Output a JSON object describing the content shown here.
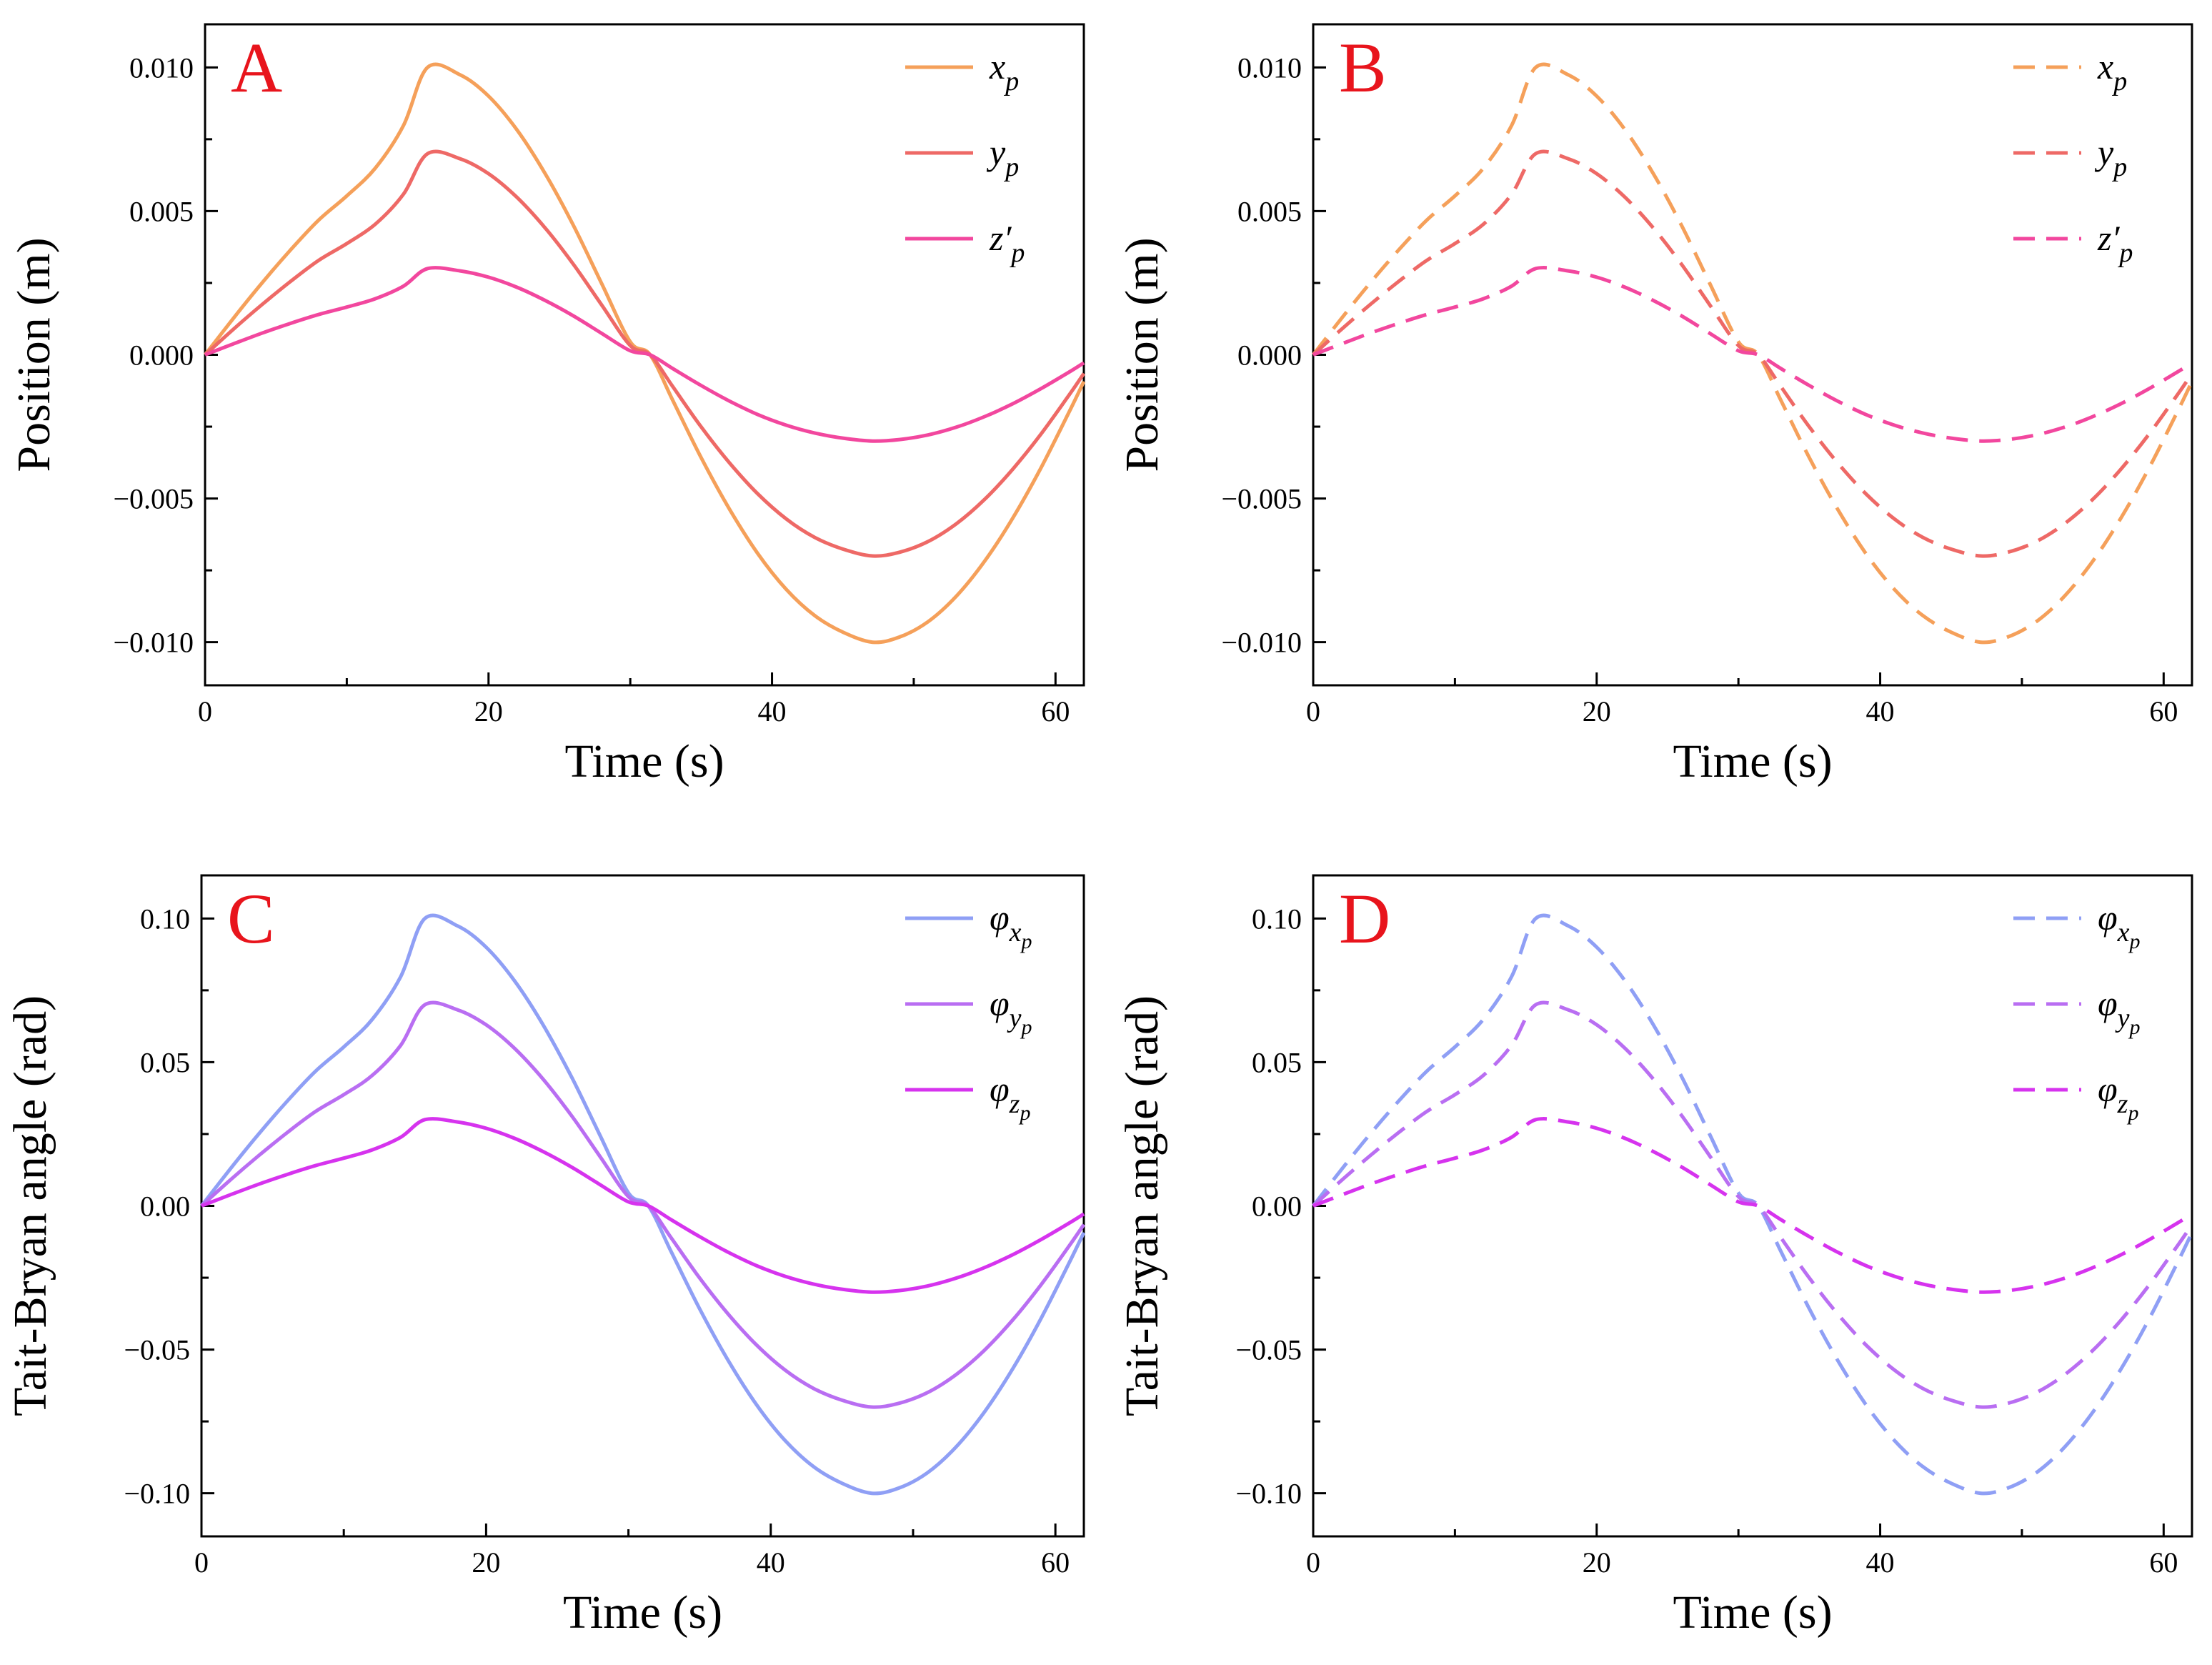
{
  "chart_data": [
    {
      "panel": "A",
      "type": "line",
      "title": "",
      "xlabel": "Time (s)",
      "ylabel": "Position (m)",
      "xlim": [
        0,
        62
      ],
      "ylim": [
        -0.0115,
        0.0115
      ],
      "xticks": [
        0,
        20,
        40,
        60
      ],
      "xtick_labels": [
        "0",
        "20",
        "40",
        "60"
      ],
      "xminor": [
        10,
        30,
        50
      ],
      "yticks": [
        0.01,
        0.005,
        0.0,
        -0.005,
        -0.01
      ],
      "ytick_labels": [
        "0.010",
        "0.005",
        "0.000",
        "−0.005",
        "−0.010"
      ],
      "grid": false,
      "legend_position": "top-right",
      "linestyle": "solid",
      "x": [
        0,
        2,
        4,
        6,
        8,
        10,
        12,
        14,
        15.7,
        18,
        20,
        22,
        24,
        26,
        28,
        30,
        31.4,
        33,
        35,
        37,
        39,
        41,
        43,
        45,
        47.1,
        49,
        51,
        53,
        55,
        57,
        59,
        61,
        62
      ],
      "series": [
        {
          "name": "x_p",
          "color": "#f5a05a",
          "legend_main": "x",
          "legend_sub": "p",
          "values": [
            0,
            0.00127,
            0.00249,
            0.00363,
            0.00468,
            0.00553,
            0.00649,
            0.00798,
            0.01,
            0.00974,
            0.009,
            0.00783,
            0.0063,
            0.00449,
            0.00246,
            0.00045,
            0,
            -0.00159,
            -0.00358,
            -0.00537,
            -0.00692,
            -0.00816,
            -0.00907,
            -0.00965,
            -0.01,
            -0.00982,
            -0.00929,
            -0.0084,
            -0.00718,
            -0.00567,
            -0.00391,
            -0.00195,
            -0.00093
          ]
        },
        {
          "name": "y_p",
          "color": "#ee6966",
          "legend_main": "y",
          "legend_sub": "p",
          "values": [
            0,
            0.00089,
            0.00174,
            0.00254,
            0.00328,
            0.00387,
            0.00454,
            0.00559,
            0.007,
            0.00682,
            0.0063,
            0.00548,
            0.00441,
            0.00314,
            0.00172,
            0.00032,
            0,
            -0.00111,
            -0.00251,
            -0.00376,
            -0.00484,
            -0.00571,
            -0.00635,
            -0.00676,
            -0.007,
            -0.00687,
            -0.0065,
            -0.00588,
            -0.00503,
            -0.00397,
            -0.00274,
            -0.00137,
            -0.00065
          ]
        },
        {
          "name": "z'_p",
          "color": "#f2479e",
          "legend_main": "z′",
          "legend_sub": "p",
          "values": [
            0,
            0.00038,
            0.00075,
            0.00109,
            0.0014,
            0.00166,
            0.00195,
            0.00239,
            0.003,
            0.00292,
            0.0027,
            0.00235,
            0.00189,
            0.00135,
            0.00074,
            0.00014,
            0,
            -0.00048,
            -0.00107,
            -0.00161,
            -0.00208,
            -0.00245,
            -0.00272,
            -0.0029,
            -0.003,
            -0.00295,
            -0.00279,
            -0.00252,
            -0.00215,
            -0.0017,
            -0.00117,
            -0.00059,
            -0.00028
          ]
        }
      ]
    },
    {
      "panel": "B",
      "type": "line",
      "title": "",
      "xlabel": "Time (s)",
      "ylabel": "Position (m)",
      "xlim": [
        0,
        62
      ],
      "ylim": [
        -0.0115,
        0.0115
      ],
      "xticks": [
        0,
        20,
        40,
        60
      ],
      "xtick_labels": [
        "0",
        "20",
        "40",
        "60"
      ],
      "xminor": [
        10,
        30,
        50
      ],
      "yticks": [
        0.01,
        0.005,
        0.0,
        -0.005,
        -0.01
      ],
      "ytick_labels": [
        "0.010",
        "0.005",
        "0.000",
        "−0.005",
        "−0.010"
      ],
      "grid": false,
      "legend_position": "top-right",
      "linestyle": "dashed",
      "x": [
        0,
        2,
        4,
        6,
        8,
        10,
        12,
        14,
        15.7,
        18,
        20,
        22,
        24,
        26,
        28,
        30,
        31.4,
        33,
        35,
        37,
        39,
        41,
        43,
        45,
        47.1,
        49,
        51,
        53,
        55,
        57,
        59,
        61,
        62
      ],
      "series": [
        {
          "name": "x_p",
          "color": "#f5a05a",
          "legend_main": "x",
          "legend_sub": "p",
          "values": [
            0,
            0.00127,
            0.00249,
            0.00363,
            0.00468,
            0.00553,
            0.00649,
            0.00798,
            0.01,
            0.00974,
            0.009,
            0.00783,
            0.0063,
            0.00449,
            0.00246,
            0.00045,
            0,
            -0.00159,
            -0.00358,
            -0.00537,
            -0.00692,
            -0.00816,
            -0.00907,
            -0.00965,
            -0.01,
            -0.00982,
            -0.00929,
            -0.0084,
            -0.00718,
            -0.00567,
            -0.00391,
            -0.00195,
            -0.00093
          ]
        },
        {
          "name": "y_p",
          "color": "#ee6966",
          "legend_main": "y",
          "legend_sub": "p",
          "values": [
            0,
            0.00089,
            0.00174,
            0.00254,
            0.00328,
            0.00387,
            0.00454,
            0.00559,
            0.007,
            0.00682,
            0.0063,
            0.00548,
            0.00441,
            0.00314,
            0.00172,
            0.00032,
            0,
            -0.00111,
            -0.00251,
            -0.00376,
            -0.00484,
            -0.00571,
            -0.00635,
            -0.00676,
            -0.007,
            -0.00687,
            -0.0065,
            -0.00588,
            -0.00503,
            -0.00397,
            -0.00274,
            -0.00137,
            -0.00065
          ]
        },
        {
          "name": "z'_p",
          "color": "#f2479e",
          "legend_main": "z′",
          "legend_sub": "p",
          "values": [
            0,
            0.00038,
            0.00075,
            0.00109,
            0.0014,
            0.00166,
            0.00195,
            0.00239,
            0.003,
            0.00292,
            0.0027,
            0.00235,
            0.00189,
            0.00135,
            0.00074,
            0.00014,
            0,
            -0.00048,
            -0.00107,
            -0.00161,
            -0.00208,
            -0.00245,
            -0.00272,
            -0.0029,
            -0.003,
            -0.00295,
            -0.00279,
            -0.00252,
            -0.00215,
            -0.0017,
            -0.00117,
            -0.00059,
            -0.00028
          ]
        }
      ]
    },
    {
      "panel": "C",
      "type": "line",
      "title": "",
      "xlabel": "Time (s)",
      "ylabel": "Tait-Bryan angle (rad)",
      "xlim": [
        0,
        62
      ],
      "ylim": [
        -0.115,
        0.115
      ],
      "xticks": [
        0,
        20,
        40,
        60
      ],
      "xtick_labels": [
        "0",
        "20",
        "40",
        "60"
      ],
      "xminor": [
        10,
        30,
        50
      ],
      "yticks": [
        0.1,
        0.05,
        0.0,
        -0.05,
        -0.1
      ],
      "ytick_labels": [
        "0.10",
        "0.05",
        "0.00",
        "−0.05",
        "−0.10"
      ],
      "grid": false,
      "legend_position": "top-right",
      "linestyle": "solid",
      "x": [
        0,
        2,
        4,
        6,
        8,
        10,
        12,
        14,
        15.7,
        18,
        20,
        22,
        24,
        26,
        28,
        30,
        31.4,
        33,
        35,
        37,
        39,
        41,
        43,
        45,
        47.1,
        49,
        51,
        53,
        55,
        57,
        59,
        61,
        62
      ],
      "series": [
        {
          "name": "phi_xp",
          "color": "#8f9ff5",
          "legend_main": "φ",
          "legend_sub": "x",
          "legend_subsub": "p",
          "values": [
            0,
            0.0127,
            0.0249,
            0.0363,
            0.0468,
            0.0553,
            0.0649,
            0.0798,
            0.1,
            0.0974,
            0.09,
            0.0783,
            0.063,
            0.0449,
            0.0246,
            0.0045,
            0,
            -0.0159,
            -0.0358,
            -0.0537,
            -0.0692,
            -0.0816,
            -0.0907,
            -0.0965,
            -0.1,
            -0.0982,
            -0.0929,
            -0.084,
            -0.0718,
            -0.0567,
            -0.0391,
            -0.0195,
            -0.0093
          ]
        },
        {
          "name": "phi_yp",
          "color": "#b96ef2",
          "legend_main": "φ",
          "legend_sub": "y",
          "legend_subsub": "p",
          "values": [
            0,
            0.0089,
            0.0174,
            0.0254,
            0.0328,
            0.0387,
            0.0454,
            0.0559,
            0.07,
            0.0682,
            0.063,
            0.0548,
            0.0441,
            0.0314,
            0.0172,
            0.0032,
            0,
            -0.0111,
            -0.0251,
            -0.0376,
            -0.0484,
            -0.0571,
            -0.0635,
            -0.0676,
            -0.07,
            -0.0687,
            -0.065,
            -0.0588,
            -0.0503,
            -0.0397,
            -0.0274,
            -0.0137,
            -0.0065
          ]
        },
        {
          "name": "phi_zp",
          "color": "#d633ee",
          "legend_main": "φ",
          "legend_sub": "z",
          "legend_subsub": "p",
          "values": [
            0,
            0.0038,
            0.0075,
            0.0109,
            0.014,
            0.0166,
            0.0195,
            0.0239,
            0.03,
            0.0292,
            0.027,
            0.0235,
            0.0189,
            0.0135,
            0.0074,
            0.0014,
            0,
            -0.0048,
            -0.0107,
            -0.0161,
            -0.0208,
            -0.0245,
            -0.0272,
            -0.029,
            -0.03,
            -0.0295,
            -0.0279,
            -0.0252,
            -0.0215,
            -0.017,
            -0.0117,
            -0.0059,
            -0.0028
          ]
        }
      ]
    },
    {
      "panel": "D",
      "type": "line",
      "title": "",
      "xlabel": "Time (s)",
      "ylabel": "Tait-Bryan angle (rad)",
      "xlim": [
        0,
        62
      ],
      "ylim": [
        -0.115,
        0.115
      ],
      "xticks": [
        0,
        20,
        40,
        60
      ],
      "xtick_labels": [
        "0",
        "20",
        "40",
        "60"
      ],
      "xminor": [
        10,
        30,
        50
      ],
      "yticks": [
        0.1,
        0.05,
        0.0,
        -0.05,
        -0.1
      ],
      "ytick_labels": [
        "0.10",
        "0.05",
        "0.00",
        "−0.05",
        "−0.10"
      ],
      "grid": false,
      "legend_position": "top-right",
      "linestyle": "dashed",
      "x": [
        0,
        2,
        4,
        6,
        8,
        10,
        12,
        14,
        15.7,
        18,
        20,
        22,
        24,
        26,
        28,
        30,
        31.4,
        33,
        35,
        37,
        39,
        41,
        43,
        45,
        47.1,
        49,
        51,
        53,
        55,
        57,
        59,
        61,
        62
      ],
      "series": [
        {
          "name": "phi_xp",
          "color": "#8f9ff5",
          "legend_main": "φ",
          "legend_sub": "x",
          "legend_subsub": "p",
          "values": [
            0,
            0.0127,
            0.0249,
            0.0363,
            0.0468,
            0.0553,
            0.0649,
            0.0798,
            0.1,
            0.0974,
            0.09,
            0.0783,
            0.063,
            0.0449,
            0.0246,
            0.0045,
            0,
            -0.0159,
            -0.0358,
            -0.0537,
            -0.0692,
            -0.0816,
            -0.0907,
            -0.0965,
            -0.1,
            -0.0982,
            -0.0929,
            -0.084,
            -0.0718,
            -0.0567,
            -0.0391,
            -0.0195,
            -0.0093
          ]
        },
        {
          "name": "phi_yp",
          "color": "#b96ef2",
          "legend_main": "φ",
          "legend_sub": "y",
          "legend_subsub": "p",
          "values": [
            0,
            0.0089,
            0.0174,
            0.0254,
            0.0328,
            0.0387,
            0.0454,
            0.0559,
            0.07,
            0.0682,
            0.063,
            0.0548,
            0.0441,
            0.0314,
            0.0172,
            0.0032,
            0,
            -0.0111,
            -0.0251,
            -0.0376,
            -0.0484,
            -0.0571,
            -0.0635,
            -0.0676,
            -0.07,
            -0.0687,
            -0.065,
            -0.0588,
            -0.0503,
            -0.0397,
            -0.0274,
            -0.0137,
            -0.0065
          ]
        },
        {
          "name": "phi_zp",
          "color": "#d633ee",
          "legend_main": "φ",
          "legend_sub": "z",
          "legend_subsub": "p",
          "values": [
            0,
            0.0038,
            0.0075,
            0.0109,
            0.014,
            0.0166,
            0.0195,
            0.0239,
            0.03,
            0.0292,
            0.027,
            0.0235,
            0.0189,
            0.0135,
            0.0074,
            0.0014,
            0,
            -0.0048,
            -0.0107,
            -0.0161,
            -0.0208,
            -0.0245,
            -0.0272,
            -0.029,
            -0.03,
            -0.0295,
            -0.0279,
            -0.0252,
            -0.0215,
            -0.017,
            -0.0117,
            -0.0059,
            -0.0028
          ]
        }
      ]
    }
  ]
}
